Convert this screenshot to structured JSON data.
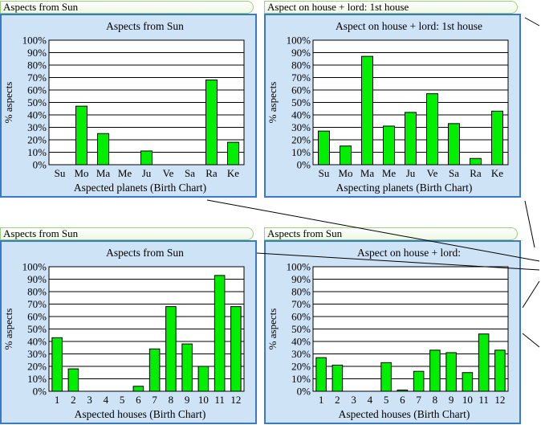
{
  "tabs": [
    {
      "label": "Aspects from Sun"
    },
    {
      "label": "Aspect on house + lord: 1st house"
    },
    {
      "label": "Aspects from Sun"
    },
    {
      "label": "Aspects from Sun"
    }
  ],
  "colors": {
    "bar": "#00ee00",
    "bar_stroke": "#000000",
    "panel_bg": "#cfe3f7",
    "panel_border": "#3a78c8",
    "tab_border": "#9bd07a"
  },
  "chart_data": [
    {
      "type": "bar",
      "title": "Aspects from Sun",
      "xlabel": "Aspected planets (Birth Chart)",
      "ylabel": "% aspects",
      "ylim": [
        0,
        100
      ],
      "yticks": [
        "0%",
        "10%",
        "20%",
        "30%",
        "40%",
        "50%",
        "60%",
        "70%",
        "80%",
        "90%",
        "100%"
      ],
      "categories": [
        "Su",
        "Mo",
        "Ma",
        "Me",
        "Ju",
        "Ve",
        "Sa",
        "Ra",
        "Ke"
      ],
      "values": [
        0,
        47,
        25,
        0,
        11,
        0,
        0,
        68,
        18
      ]
    },
    {
      "type": "bar",
      "title": "Aspect on house + lord: 1st house",
      "xlabel": "Aspecting planets (Birth Chart)",
      "ylabel": "% aspects",
      "ylim": [
        0,
        100
      ],
      "yticks": [
        "0%",
        "10%",
        "20%",
        "30%",
        "40%",
        "50%",
        "60%",
        "70%",
        "80%",
        "90%",
        "100%"
      ],
      "categories": [
        "Su",
        "Mo",
        "Ma",
        "Me",
        "Ju",
        "Ve",
        "Sa",
        "Ra",
        "Ke"
      ],
      "values": [
        27,
        15,
        87,
        31,
        42,
        57,
        33,
        5,
        43
      ]
    },
    {
      "type": "bar",
      "title": "Aspects from Sun",
      "xlabel": "Aspected houses (Birth Chart)",
      "ylabel": "% aspects",
      "ylim": [
        0,
        100
      ],
      "yticks": [
        "0%",
        "10%",
        "20%",
        "30%",
        "40%",
        "50%",
        "60%",
        "70%",
        "80%",
        "90%",
        "100%"
      ],
      "categories": [
        "1",
        "2",
        "3",
        "4",
        "5",
        "6",
        "7",
        "8",
        "9",
        "10",
        "11",
        "12"
      ],
      "values": [
        43,
        18,
        0,
        0,
        0,
        4,
        34,
        68,
        38,
        20,
        93,
        68
      ]
    },
    {
      "type": "bar",
      "title": "Aspect on house + lord:",
      "xlabel": "Aspected houses (Birth Chart)",
      "ylabel": "% aspects",
      "ylim": [
        0,
        100
      ],
      "yticks": [
        "0%",
        "10%",
        "20%",
        "30%",
        "40%",
        "50%",
        "60%",
        "70%",
        "80%",
        "90%",
        "100%"
      ],
      "categories": [
        "1",
        "2",
        "3",
        "4",
        "5",
        "6",
        "7",
        "8",
        "9",
        "10",
        "11",
        "12"
      ],
      "values": [
        27,
        21,
        0,
        0,
        23,
        1,
        16,
        33,
        31,
        15,
        46,
        33
      ]
    }
  ]
}
